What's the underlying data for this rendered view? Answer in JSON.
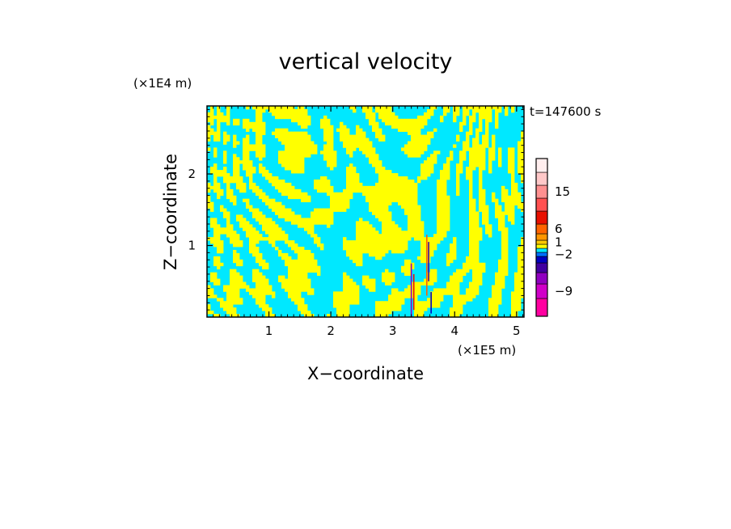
{
  "chart_data": {
    "type": "heatmap",
    "title": "vertical velocity",
    "xlabel": "X−coordinate",
    "ylabel": "Z−coordinate",
    "x_unit": "(×1E5 m)",
    "y_unit": "(×1E4 m)",
    "time_label": "t=147600 s",
    "xlim": [
      0,
      5.12
    ],
    "ylim": [
      0,
      2.95
    ],
    "x_ticks": [
      1,
      2,
      3,
      4,
      5
    ],
    "y_ticks": [
      1,
      2
    ],
    "x_tick_labels": [
      "1",
      "2",
      "3",
      "4",
      "5"
    ],
    "y_tick_labels": [
      "1",
      "2"
    ],
    "grid": false,
    "dominant_colors": {
      "positive": "#ffff00",
      "negative": "#00e8ff"
    },
    "colorbar": {
      "placement": "right",
      "bands_bottom_to_top": [
        "#ff00a0",
        "#d000c8",
        "#9000c0",
        "#4000a0",
        "#0000c0",
        "#0070ff",
        "#00e8ff",
        "#ffff00",
        "#ffc800",
        "#ff9600",
        "#ff6400",
        "#e81000",
        "#ff5050",
        "#ff9090",
        "#ffc8c8",
        "#ffeeee"
      ],
      "tick_labels": [
        "15",
        "6",
        "1",
        "−2",
        "−9"
      ]
    }
  }
}
